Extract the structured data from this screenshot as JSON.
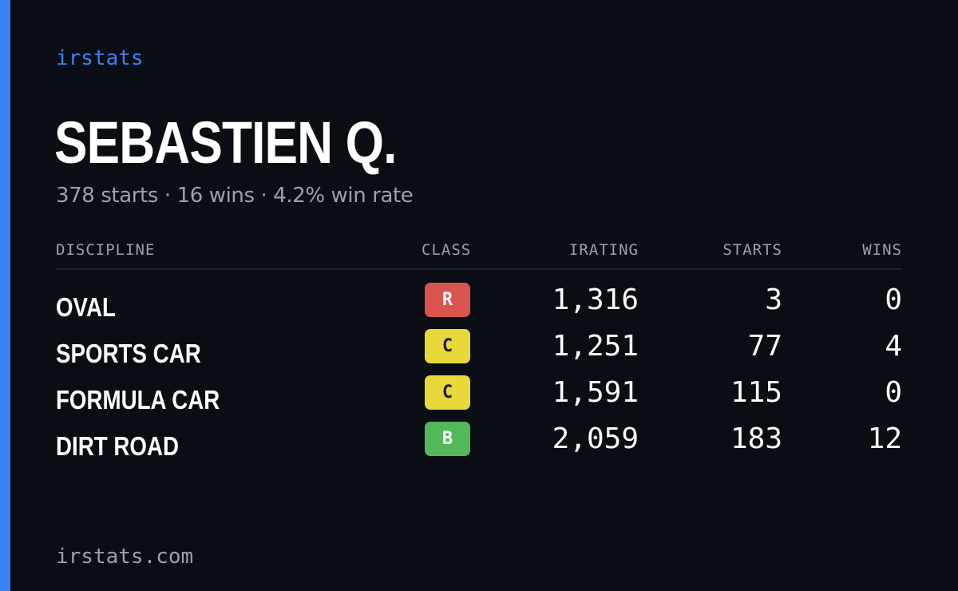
{
  "brand": "irstats",
  "driver": {
    "name": "SEBASTIEN Q.",
    "summary": "378 starts · 16 wins · 4.2% win rate"
  },
  "table": {
    "headers": {
      "discipline": "DISCIPLINE",
      "class": "CLASS",
      "irating": "IRATING",
      "starts": "STARTS",
      "wins": "WINS"
    },
    "rows": [
      {
        "discipline": "OVAL",
        "class": "R",
        "irating": "1,316",
        "starts": "3",
        "wins": "0"
      },
      {
        "discipline": "SPORTS CAR",
        "class": "C",
        "irating": "1,251",
        "starts": "77",
        "wins": "4"
      },
      {
        "discipline": "FORMULA CAR",
        "class": "C",
        "irating": "1,591",
        "starts": "115",
        "wins": "0"
      },
      {
        "discipline": "DIRT ROAD",
        "class": "B",
        "irating": "2,059",
        "starts": "183",
        "wins": "12"
      }
    ]
  },
  "class_colors": {
    "R": {
      "bg": "#d9534f",
      "fg": "#ffffff"
    },
    "C": {
      "bg": "#e8d83a",
      "fg": "#1a1a1a"
    },
    "B": {
      "bg": "#52b85a",
      "fg": "#ffffff"
    }
  },
  "colors": {
    "accent": "#3b82f6",
    "background": "#0b0d14",
    "muted_text": "#9aa1ad"
  },
  "footer": "irstats.com"
}
